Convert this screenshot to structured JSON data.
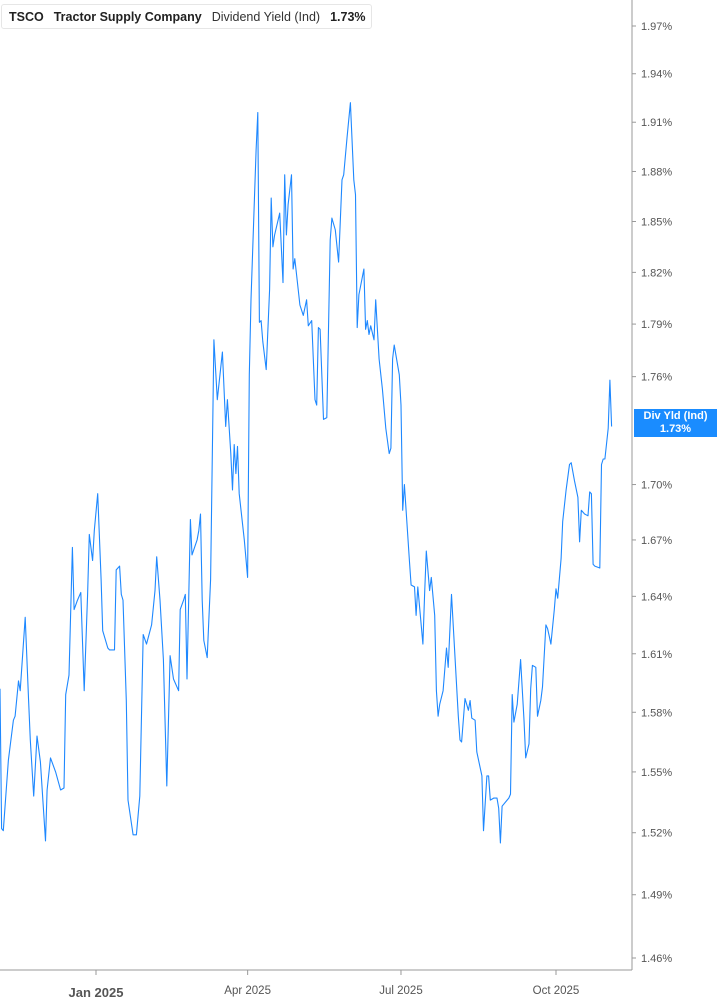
{
  "legend": {
    "ticker": "TSCO",
    "company": "Tractor Supply Company",
    "metric": "Dividend Yield (Ind)",
    "value": "1.73%"
  },
  "current_label": {
    "line1": "Div Yld (Ind)",
    "line2": "1.73%"
  },
  "colors": {
    "line": "#1e88ff",
    "accent": "#1a8cff",
    "axis": "#999999",
    "tick_text": "#555555"
  },
  "chart_data": {
    "type": "line",
    "title": "",
    "xlabel": "",
    "ylabel": "",
    "y_scale": "log",
    "y_axis_position": "right",
    "ylim": [
      1.46,
      1.97
    ],
    "xlim": [
      "2024-11-05",
      "2025-11-15"
    ],
    "grid": false,
    "y_ticks": [
      1.97,
      1.94,
      1.91,
      1.88,
      1.85,
      1.82,
      1.79,
      1.76,
      1.7,
      1.67,
      1.64,
      1.61,
      1.58,
      1.55,
      1.52,
      1.49,
      1.46
    ],
    "y_tick_labels": [
      "1.97%",
      "1.94%",
      "1.91%",
      "1.88%",
      "1.85%",
      "1.82%",
      "1.79%",
      "1.76%",
      "1.70%",
      "1.67%",
      "1.64%",
      "1.61%",
      "1.58%",
      "1.55%",
      "1.52%",
      "1.49%",
      "1.46%"
    ],
    "x_ticks": [
      "2025-01-01",
      "2025-04-01",
      "2025-07-01",
      "2025-10-01"
    ],
    "x_tick_labels": [
      "Jan 2025",
      "Apr 2025",
      "Jul 2025",
      "Oct 2025"
    ],
    "series": [
      {
        "name": "Dividend Yield (Ind)",
        "points": [
          [
            "2024-11-05",
            1.592
          ],
          [
            "2024-11-06",
            1.522
          ],
          [
            "2024-11-07",
            1.521
          ],
          [
            "2024-11-10",
            1.556
          ],
          [
            "2024-11-13",
            1.576
          ],
          [
            "2024-11-14",
            1.578
          ],
          [
            "2024-11-16",
            1.596
          ],
          [
            "2024-11-17",
            1.591
          ],
          [
            "2024-11-20",
            1.629
          ],
          [
            "2024-11-22",
            1.586
          ],
          [
            "2024-11-23",
            1.566
          ],
          [
            "2024-11-25",
            1.538
          ],
          [
            "2024-11-27",
            1.568
          ],
          [
            "2024-11-29",
            1.555
          ],
          [
            "2024-12-02",
            1.516
          ],
          [
            "2024-12-03",
            1.541
          ],
          [
            "2024-12-05",
            1.557
          ],
          [
            "2024-12-08",
            1.55
          ],
          [
            "2024-12-11",
            1.541
          ],
          [
            "2024-12-13",
            1.542
          ],
          [
            "2024-12-14",
            1.589
          ],
          [
            "2024-12-16",
            1.599
          ],
          [
            "2024-12-18",
            1.666
          ],
          [
            "2024-12-19",
            1.633
          ],
          [
            "2024-12-21",
            1.638
          ],
          [
            "2024-12-23",
            1.642
          ],
          [
            "2024-12-25",
            1.591
          ],
          [
            "2024-12-27",
            1.641
          ],
          [
            "2024-12-28",
            1.673
          ],
          [
            "2024-12-30",
            1.659
          ],
          [
            "2024-12-31",
            1.675
          ],
          [
            "2025-01-02",
            1.695
          ],
          [
            "2025-01-04",
            1.649
          ],
          [
            "2025-01-05",
            1.622
          ],
          [
            "2025-01-08",
            1.613
          ],
          [
            "2025-01-09",
            1.612
          ],
          [
            "2025-01-12",
            1.612
          ],
          [
            "2025-01-13",
            1.654
          ],
          [
            "2025-01-15",
            1.656
          ],
          [
            "2025-01-16",
            1.641
          ],
          [
            "2025-01-17",
            1.638
          ],
          [
            "2025-01-19",
            1.586
          ],
          [
            "2025-01-20",
            1.536
          ],
          [
            "2025-01-23",
            1.519
          ],
          [
            "2025-01-25",
            1.519
          ],
          [
            "2025-01-27",
            1.538
          ],
          [
            "2025-01-29",
            1.62
          ],
          [
            "2025-01-31",
            1.615
          ],
          [
            "2025-02-03",
            1.625
          ],
          [
            "2025-02-05",
            1.643
          ],
          [
            "2025-02-06",
            1.661
          ],
          [
            "2025-02-08",
            1.638
          ],
          [
            "2025-02-10",
            1.607
          ],
          [
            "2025-02-12",
            1.543
          ],
          [
            "2025-02-14",
            1.609
          ],
          [
            "2025-02-16",
            1.597
          ],
          [
            "2025-02-19",
            1.591
          ],
          [
            "2025-02-20",
            1.633
          ],
          [
            "2025-02-22",
            1.638
          ],
          [
            "2025-02-23",
            1.641
          ],
          [
            "2025-02-24",
            1.597
          ],
          [
            "2025-02-26",
            1.681
          ],
          [
            "2025-02-27",
            1.662
          ],
          [
            "2025-03-02",
            1.67
          ],
          [
            "2025-03-03",
            1.675
          ],
          [
            "2025-03-04",
            1.684
          ],
          [
            "2025-03-05",
            1.638
          ],
          [
            "2025-03-06",
            1.617
          ],
          [
            "2025-03-08",
            1.608
          ],
          [
            "2025-03-10",
            1.649
          ],
          [
            "2025-03-12",
            1.781
          ],
          [
            "2025-03-14",
            1.747
          ],
          [
            "2025-03-17",
            1.774
          ],
          [
            "2025-03-19",
            1.732
          ],
          [
            "2025-03-20",
            1.747
          ],
          [
            "2025-03-22",
            1.717
          ],
          [
            "2025-03-23",
            1.697
          ],
          [
            "2025-03-24",
            1.722
          ],
          [
            "2025-03-25",
            1.706
          ],
          [
            "2025-03-26",
            1.721
          ],
          [
            "2025-03-27",
            1.695
          ],
          [
            "2025-03-30",
            1.67
          ],
          [
            "2025-04-01",
            1.65
          ],
          [
            "2025-04-02",
            1.761
          ],
          [
            "2025-04-03",
            1.804
          ],
          [
            "2025-04-05",
            1.863
          ],
          [
            "2025-04-06",
            1.893
          ],
          [
            "2025-04-07",
            1.916
          ],
          [
            "2025-04-08",
            1.791
          ],
          [
            "2025-04-09",
            1.792
          ],
          [
            "2025-04-10",
            1.78
          ],
          [
            "2025-04-12",
            1.764
          ],
          [
            "2025-04-14",
            1.81
          ],
          [
            "2025-04-15",
            1.864
          ],
          [
            "2025-04-16",
            1.835
          ],
          [
            "2025-04-17",
            1.842
          ],
          [
            "2025-04-20",
            1.855
          ],
          [
            "2025-04-22",
            1.814
          ],
          [
            "2025-04-23",
            1.878
          ],
          [
            "2025-04-24",
            1.842
          ],
          [
            "2025-04-25",
            1.86
          ],
          [
            "2025-04-27",
            1.878
          ],
          [
            "2025-04-28",
            1.822
          ],
          [
            "2025-04-29",
            1.828
          ],
          [
            "2025-05-01",
            1.81
          ],
          [
            "2025-05-02",
            1.801
          ],
          [
            "2025-05-04",
            1.795
          ],
          [
            "2025-05-06",
            1.804
          ],
          [
            "2025-05-07",
            1.789
          ],
          [
            "2025-05-09",
            1.792
          ],
          [
            "2025-05-11",
            1.747
          ],
          [
            "2025-05-12",
            1.744
          ],
          [
            "2025-05-13",
            1.788
          ],
          [
            "2025-05-14",
            1.787
          ],
          [
            "2025-05-16",
            1.736
          ],
          [
            "2025-05-18",
            1.737
          ],
          [
            "2025-05-20",
            1.839
          ],
          [
            "2025-05-21",
            1.852
          ],
          [
            "2025-05-23",
            1.845
          ],
          [
            "2025-05-25",
            1.826
          ],
          [
            "2025-05-27",
            1.875
          ],
          [
            "2025-05-28",
            1.878
          ],
          [
            "2025-05-30",
            1.901
          ],
          [
            "2025-06-01",
            1.922
          ],
          [
            "2025-06-03",
            1.875
          ],
          [
            "2025-06-04",
            1.866
          ],
          [
            "2025-06-05",
            1.788
          ],
          [
            "2025-06-06",
            1.807
          ],
          [
            "2025-06-09",
            1.822
          ],
          [
            "2025-06-10",
            1.787
          ],
          [
            "2025-06-11",
            1.792
          ],
          [
            "2025-06-12",
            1.784
          ],
          [
            "2025-06-13",
            1.789
          ],
          [
            "2025-06-15",
            1.781
          ],
          [
            "2025-06-16",
            1.804
          ],
          [
            "2025-06-18",
            1.77
          ],
          [
            "2025-06-20",
            1.753
          ],
          [
            "2025-06-22",
            1.731
          ],
          [
            "2025-06-24",
            1.717
          ],
          [
            "2025-06-25",
            1.72
          ],
          [
            "2025-06-26",
            1.77
          ],
          [
            "2025-06-27",
            1.778
          ],
          [
            "2025-06-30",
            1.761
          ],
          [
            "2025-07-01",
            1.744
          ],
          [
            "2025-07-02",
            1.686
          ],
          [
            "2025-07-03",
            1.7
          ],
          [
            "2025-07-06",
            1.659
          ],
          [
            "2025-07-07",
            1.646
          ],
          [
            "2025-07-09",
            1.645
          ],
          [
            "2025-07-10",
            1.63
          ],
          [
            "2025-07-11",
            1.645
          ],
          [
            "2025-07-14",
            1.615
          ],
          [
            "2025-07-15",
            1.641
          ],
          [
            "2025-07-16",
            1.664
          ],
          [
            "2025-07-18",
            1.643
          ],
          [
            "2025-07-19",
            1.65
          ],
          [
            "2025-07-21",
            1.63
          ],
          [
            "2025-07-22",
            1.591
          ],
          [
            "2025-07-23",
            1.578
          ],
          [
            "2025-07-24",
            1.584
          ],
          [
            "2025-07-26",
            1.591
          ],
          [
            "2025-07-28",
            1.613
          ],
          [
            "2025-07-29",
            1.603
          ],
          [
            "2025-07-31",
            1.641
          ],
          [
            "2025-08-04",
            1.578
          ],
          [
            "2025-08-05",
            1.566
          ],
          [
            "2025-08-06",
            1.565
          ],
          [
            "2025-08-08",
            1.587
          ],
          [
            "2025-08-10",
            1.581
          ],
          [
            "2025-08-11",
            1.586
          ],
          [
            "2025-08-12",
            1.577
          ],
          [
            "2025-08-14",
            1.576
          ],
          [
            "2025-08-15",
            1.56
          ],
          [
            "2025-08-18",
            1.548
          ],
          [
            "2025-08-19",
            1.521
          ],
          [
            "2025-08-21",
            1.548
          ],
          [
            "2025-08-22",
            1.548
          ],
          [
            "2025-08-23",
            1.536
          ],
          [
            "2025-08-25",
            1.537
          ],
          [
            "2025-08-27",
            1.537
          ],
          [
            "2025-08-28",
            1.532
          ],
          [
            "2025-08-29",
            1.515
          ],
          [
            "2025-08-30",
            1.533
          ],
          [
            "2025-09-02",
            1.536
          ],
          [
            "2025-09-03",
            1.537
          ],
          [
            "2025-09-04",
            1.539
          ],
          [
            "2025-09-05",
            1.589
          ],
          [
            "2025-09-06",
            1.575
          ],
          [
            "2025-09-08",
            1.584
          ],
          [
            "2025-09-10",
            1.607
          ],
          [
            "2025-09-12",
            1.576
          ],
          [
            "2025-09-13",
            1.557
          ],
          [
            "2025-09-15",
            1.564
          ],
          [
            "2025-09-16",
            1.592
          ],
          [
            "2025-09-17",
            1.604
          ],
          [
            "2025-09-19",
            1.603
          ],
          [
            "2025-09-20",
            1.578
          ],
          [
            "2025-09-22",
            1.586
          ],
          [
            "2025-09-23",
            1.593
          ],
          [
            "2025-09-25",
            1.625
          ],
          [
            "2025-09-26",
            1.623
          ],
          [
            "2025-09-27",
            1.619
          ],
          [
            "2025-09-28",
            1.615
          ],
          [
            "2025-09-30",
            1.633
          ],
          [
            "2025-10-01",
            1.644
          ],
          [
            "2025-10-02",
            1.639
          ],
          [
            "2025-10-04",
            1.66
          ],
          [
            "2025-10-05",
            1.68
          ],
          [
            "2025-10-07",
            1.697
          ],
          [
            "2025-10-09",
            1.711
          ],
          [
            "2025-10-10",
            1.712
          ],
          [
            "2025-10-12",
            1.702
          ],
          [
            "2025-10-14",
            1.693
          ],
          [
            "2025-10-15",
            1.669
          ],
          [
            "2025-10-16",
            1.686
          ],
          [
            "2025-10-18",
            1.684
          ],
          [
            "2025-10-20",
            1.683
          ],
          [
            "2025-10-21",
            1.696
          ],
          [
            "2025-10-22",
            1.695
          ],
          [
            "2025-10-23",
            1.657
          ],
          [
            "2025-10-24",
            1.656
          ],
          [
            "2025-10-27",
            1.655
          ],
          [
            "2025-10-28",
            1.711
          ],
          [
            "2025-10-29",
            1.714
          ],
          [
            "2025-10-30",
            1.714
          ],
          [
            "2025-11-01",
            1.731
          ],
          [
            "2025-11-02",
            1.758
          ],
          [
            "2025-11-03",
            1.732
          ]
        ]
      }
    ]
  }
}
